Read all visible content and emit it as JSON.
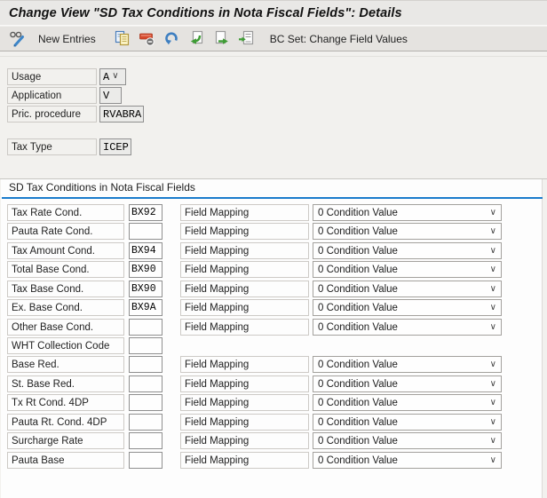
{
  "window": {
    "title": "Change View \"SD Tax Conditions in Nota Fiscal Fields\": Details"
  },
  "toolbar": {
    "new_entries_label": "New Entries",
    "bc_set_label": "BC Set: Change Field Values",
    "icons": [
      "display-change-toggle-icon",
      "copy-icon",
      "delete-row-icon",
      "undo-icon",
      "previous-entry-icon",
      "next-entry-icon",
      "select-entry-icon"
    ]
  },
  "header_fields": {
    "usage": {
      "label": "Usage",
      "value": "A"
    },
    "application": {
      "label": "Application",
      "value": "V"
    },
    "pricing_procedure": {
      "label": "Pric. procedure",
      "value": "RVABRA"
    },
    "tax_type": {
      "label": "Tax Type",
      "value": "ICEP"
    }
  },
  "section": {
    "title": "SD Tax Conditions in Nota Fiscal Fields",
    "field_mapping_label": "Field Mapping",
    "rows": [
      {
        "label": "Tax Rate Cond.",
        "value": "BX92",
        "has_mapping": true,
        "mapping_value": "0 Condition Value"
      },
      {
        "label": "Pauta Rate Cond.",
        "value": "",
        "has_mapping": true,
        "mapping_value": "0 Condition Value"
      },
      {
        "label": "Tax Amount Cond.",
        "value": "BX94",
        "has_mapping": true,
        "mapping_value": "0 Condition Value"
      },
      {
        "label": "Total Base Cond.",
        "value": "BX90",
        "has_mapping": true,
        "mapping_value": "0 Condition Value"
      },
      {
        "label": "Tax Base Cond.",
        "value": "BX90",
        "has_mapping": true,
        "mapping_value": "0 Condition Value"
      },
      {
        "label": "Ex. Base Cond.",
        "value": "BX9A",
        "has_mapping": true,
        "mapping_value": "0 Condition Value"
      },
      {
        "label": "Other Base Cond.",
        "value": "",
        "has_mapping": true,
        "mapping_value": "0 Condition Value"
      },
      {
        "label": "WHT Collection Code",
        "value": "",
        "has_mapping": false,
        "mapping_value": ""
      },
      {
        "label": "Base Red.",
        "value": "",
        "has_mapping": true,
        "mapping_value": "0 Condition Value"
      },
      {
        "label": "St. Base Red.",
        "value": "",
        "has_mapping": true,
        "mapping_value": "0 Condition Value"
      },
      {
        "label": "Tx Rt Cond. 4DP",
        "value": "",
        "has_mapping": true,
        "mapping_value": "0 Condition Value"
      },
      {
        "label": "Pauta Rt. Cond. 4DP",
        "value": "",
        "has_mapping": true,
        "mapping_value": "0 Condition Value"
      },
      {
        "label": "Surcharge Rate",
        "value": "",
        "has_mapping": true,
        "mapping_value": "0 Condition Value"
      },
      {
        "label": "Pauta Base",
        "value": "",
        "has_mapping": true,
        "mapping_value": "0 Condition Value"
      }
    ]
  },
  "colors": {
    "accent_line": "#1b7ccc",
    "titlebar_bg": "#e9e8e6",
    "toolbar_bg": "#e5e3e0",
    "page_bg": "#f2f1ee",
    "group_bg": "#fdfdfd"
  }
}
